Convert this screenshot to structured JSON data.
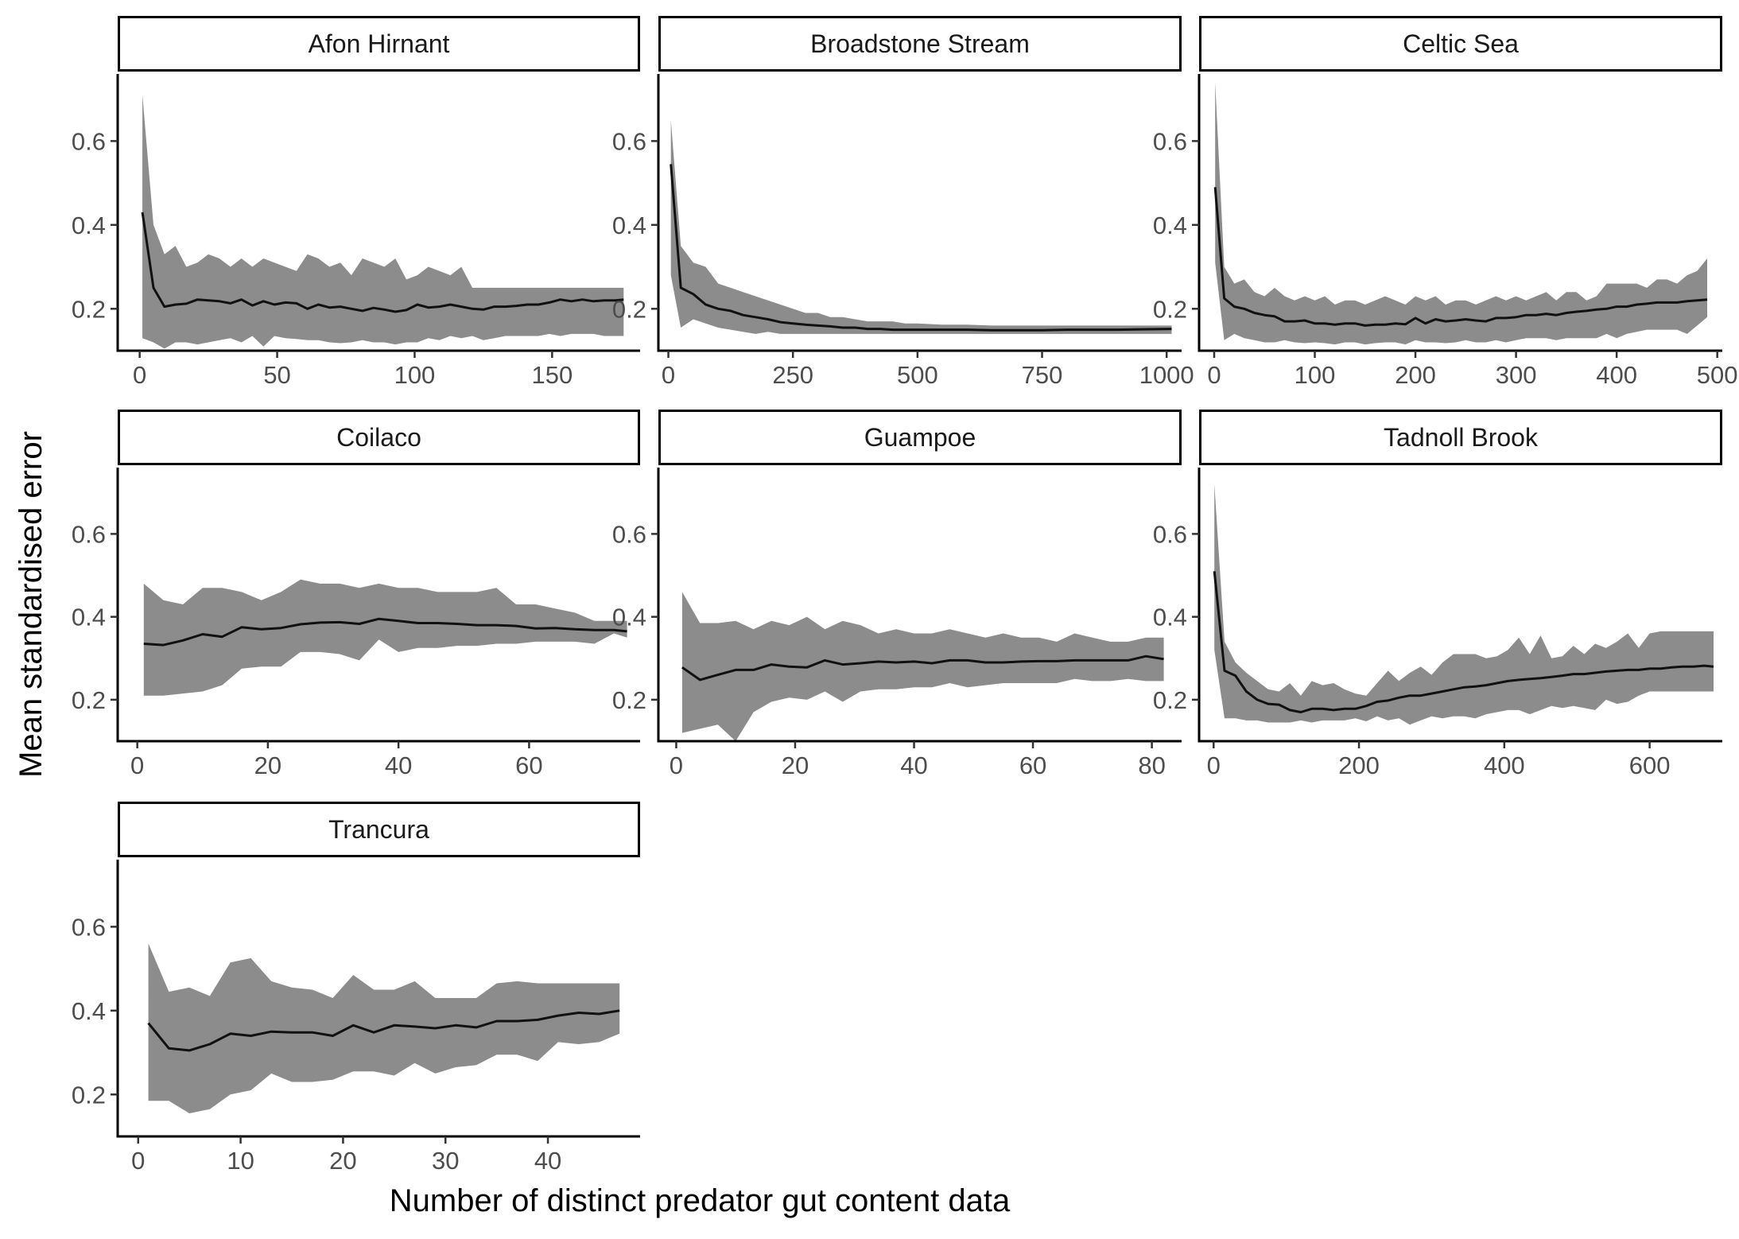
{
  "chart_data": {
    "type": "line",
    "xlabel": "Number of distinct predator gut content data",
    "ylabel": "Mean standardised error",
    "ylim": [
      0.1,
      0.76
    ],
    "yticks": [
      0.2,
      0.4,
      0.6
    ],
    "ytick_labels": [
      "0.2",
      "0.4",
      "0.6"
    ],
    "colors": {
      "line": "#111111",
      "ribbon": "#8c8c8c",
      "strip_border": "#000000",
      "axis": "#000000"
    },
    "grid": false,
    "legend": "none",
    "panels": [
      {
        "title": "Afon Hirnant",
        "xlim": [
          -8,
          182
        ],
        "xticks": [
          0,
          50,
          100,
          150
        ],
        "xtick_labels": [
          "0",
          "50",
          "100",
          "150"
        ],
        "x": [
          1,
          5,
          9,
          13,
          17,
          21,
          25,
          29,
          33,
          37,
          41,
          45,
          49,
          53,
          57,
          61,
          65,
          69,
          73,
          77,
          81,
          85,
          89,
          93,
          97,
          101,
          105,
          109,
          113,
          117,
          121,
          125,
          129,
          133,
          137,
          141,
          145,
          149,
          153,
          157,
          161,
          165,
          169,
          173,
          176
        ],
        "mean": [
          0.43,
          0.25,
          0.205,
          0.21,
          0.212,
          0.222,
          0.22,
          0.218,
          0.213,
          0.222,
          0.208,
          0.218,
          0.21,
          0.215,
          0.213,
          0.2,
          0.21,
          0.203,
          0.205,
          0.2,
          0.195,
          0.202,
          0.198,
          0.193,
          0.197,
          0.21,
          0.203,
          0.205,
          0.21,
          0.205,
          0.2,
          0.198,
          0.205,
          0.205,
          0.207,
          0.21,
          0.21,
          0.215,
          0.222,
          0.218,
          0.222,
          0.218,
          0.22,
          0.22,
          0.222
        ],
        "upper": [
          0.71,
          0.4,
          0.33,
          0.35,
          0.3,
          0.31,
          0.33,
          0.32,
          0.3,
          0.32,
          0.3,
          0.32,
          0.31,
          0.3,
          0.29,
          0.33,
          0.32,
          0.3,
          0.31,
          0.28,
          0.32,
          0.31,
          0.3,
          0.32,
          0.27,
          0.28,
          0.3,
          0.29,
          0.28,
          0.3,
          0.25,
          0.25,
          0.25,
          0.25,
          0.25,
          0.25,
          0.25,
          0.25,
          0.25,
          0.25,
          0.25,
          0.25,
          0.25,
          0.25,
          0.25
        ],
        "lower": [
          0.13,
          0.12,
          0.105,
          0.12,
          0.12,
          0.115,
          0.12,
          0.125,
          0.13,
          0.12,
          0.135,
          0.11,
          0.135,
          0.13,
          0.128,
          0.125,
          0.125,
          0.12,
          0.118,
          0.12,
          0.125,
          0.12,
          0.12,
          0.115,
          0.12,
          0.12,
          0.13,
          0.125,
          0.135,
          0.13,
          0.135,
          0.125,
          0.13,
          0.135,
          0.135,
          0.135,
          0.135,
          0.14,
          0.135,
          0.14,
          0.14,
          0.14,
          0.135,
          0.135,
          0.135
        ]
      },
      {
        "title": "Broadstone Stream",
        "xlim": [
          -20,
          1030
        ],
        "xticks": [
          0,
          250,
          500,
          750,
          1000
        ],
        "xtick_labels": [
          "0",
          "250",
          "500",
          "750",
          "1000"
        ],
        "x": [
          5,
          25,
          50,
          75,
          100,
          125,
          150,
          175,
          200,
          225,
          250,
          275,
          300,
          325,
          350,
          375,
          400,
          425,
          450,
          475,
          500,
          550,
          600,
          650,
          700,
          750,
          800,
          850,
          900,
          950,
          1010
        ],
        "mean": [
          0.545,
          0.25,
          0.235,
          0.21,
          0.2,
          0.195,
          0.185,
          0.18,
          0.175,
          0.168,
          0.165,
          0.162,
          0.16,
          0.158,
          0.155,
          0.155,
          0.152,
          0.152,
          0.15,
          0.15,
          0.15,
          0.15,
          0.15,
          0.149,
          0.149,
          0.149,
          0.15,
          0.15,
          0.15,
          0.151,
          0.152
        ],
        "upper": [
          0.65,
          0.35,
          0.31,
          0.3,
          0.26,
          0.25,
          0.24,
          0.23,
          0.22,
          0.21,
          0.2,
          0.19,
          0.19,
          0.18,
          0.18,
          0.175,
          0.17,
          0.17,
          0.17,
          0.165,
          0.165,
          0.162,
          0.162,
          0.16,
          0.16,
          0.16,
          0.16,
          0.16,
          0.16,
          0.16,
          0.16
        ],
        "lower": [
          0.28,
          0.155,
          0.175,
          0.165,
          0.155,
          0.15,
          0.145,
          0.14,
          0.145,
          0.14,
          0.14,
          0.14,
          0.14,
          0.14,
          0.14,
          0.14,
          0.14,
          0.14,
          0.14,
          0.14,
          0.14,
          0.14,
          0.14,
          0.14,
          0.14,
          0.14,
          0.14,
          0.14,
          0.14,
          0.14,
          0.14
        ]
      },
      {
        "title": "Celtic Sea",
        "xlim": [
          -15,
          505
        ],
        "xticks": [
          0,
          100,
          200,
          300,
          400,
          500
        ],
        "xtick_labels": [
          "0",
          "100",
          "200",
          "300",
          "400",
          "500"
        ],
        "x": [
          1,
          10,
          20,
          30,
          40,
          50,
          60,
          70,
          80,
          90,
          100,
          110,
          120,
          130,
          140,
          150,
          160,
          170,
          180,
          190,
          200,
          210,
          220,
          230,
          240,
          250,
          260,
          270,
          280,
          290,
          300,
          310,
          320,
          330,
          340,
          350,
          360,
          370,
          380,
          390,
          400,
          410,
          420,
          430,
          440,
          450,
          460,
          470,
          480,
          490
        ],
        "mean": [
          0.49,
          0.225,
          0.205,
          0.2,
          0.19,
          0.185,
          0.182,
          0.17,
          0.17,
          0.172,
          0.165,
          0.165,
          0.162,
          0.165,
          0.165,
          0.16,
          0.162,
          0.162,
          0.165,
          0.163,
          0.178,
          0.165,
          0.175,
          0.17,
          0.172,
          0.175,
          0.172,
          0.17,
          0.178,
          0.178,
          0.18,
          0.185,
          0.185,
          0.188,
          0.185,
          0.19,
          0.193,
          0.195,
          0.198,
          0.2,
          0.205,
          0.205,
          0.21,
          0.212,
          0.215,
          0.215,
          0.215,
          0.218,
          0.22,
          0.222
        ],
        "upper": [
          0.74,
          0.3,
          0.26,
          0.27,
          0.24,
          0.23,
          0.25,
          0.23,
          0.22,
          0.23,
          0.22,
          0.23,
          0.21,
          0.22,
          0.22,
          0.21,
          0.22,
          0.23,
          0.22,
          0.21,
          0.23,
          0.22,
          0.23,
          0.21,
          0.22,
          0.22,
          0.21,
          0.22,
          0.23,
          0.22,
          0.23,
          0.22,
          0.23,
          0.24,
          0.22,
          0.24,
          0.24,
          0.22,
          0.23,
          0.26,
          0.26,
          0.26,
          0.26,
          0.25,
          0.27,
          0.27,
          0.26,
          0.28,
          0.29,
          0.32
        ],
        "lower": [
          0.31,
          0.125,
          0.14,
          0.13,
          0.125,
          0.12,
          0.12,
          0.125,
          0.12,
          0.118,
          0.12,
          0.118,
          0.115,
          0.12,
          0.12,
          0.115,
          0.118,
          0.12,
          0.12,
          0.115,
          0.125,
          0.12,
          0.12,
          0.118,
          0.12,
          0.125,
          0.12,
          0.12,
          0.125,
          0.12,
          0.125,
          0.13,
          0.13,
          0.13,
          0.125,
          0.13,
          0.13,
          0.13,
          0.13,
          0.14,
          0.13,
          0.14,
          0.145,
          0.15,
          0.15,
          0.15,
          0.15,
          0.14,
          0.16,
          0.18
        ]
      },
      {
        "title": "Coilaco",
        "xlim": [
          -3,
          77
        ],
        "xticks": [
          0,
          20,
          40,
          60
        ],
        "xtick_labels": [
          "0",
          "20",
          "40",
          "60"
        ],
        "x": [
          1,
          4,
          7,
          10,
          13,
          16,
          19,
          22,
          25,
          28,
          31,
          34,
          37,
          40,
          43,
          46,
          49,
          52,
          55,
          58,
          61,
          64,
          67,
          70,
          73,
          75
        ],
        "mean": [
          0.335,
          0.332,
          0.343,
          0.358,
          0.352,
          0.375,
          0.37,
          0.373,
          0.382,
          0.386,
          0.387,
          0.383,
          0.395,
          0.39,
          0.385,
          0.385,
          0.383,
          0.38,
          0.38,
          0.378,
          0.372,
          0.373,
          0.37,
          0.368,
          0.368,
          0.365
        ],
        "upper": [
          0.48,
          0.44,
          0.43,
          0.47,
          0.47,
          0.46,
          0.44,
          0.46,
          0.49,
          0.48,
          0.48,
          0.47,
          0.48,
          0.47,
          0.47,
          0.46,
          0.46,
          0.46,
          0.47,
          0.43,
          0.43,
          0.42,
          0.41,
          0.39,
          0.39,
          0.39
        ],
        "lower": [
          0.21,
          0.21,
          0.215,
          0.22,
          0.235,
          0.275,
          0.28,
          0.28,
          0.315,
          0.315,
          0.31,
          0.295,
          0.345,
          0.315,
          0.325,
          0.325,
          0.33,
          0.33,
          0.335,
          0.335,
          0.34,
          0.34,
          0.34,
          0.335,
          0.36,
          0.35
        ]
      },
      {
        "title": "Guampoe",
        "xlim": [
          -3,
          85
        ],
        "xticks": [
          0,
          20,
          40,
          60,
          80
        ],
        "xtick_labels": [
          "0",
          "20",
          "40",
          "60",
          "80"
        ],
        "x": [
          1,
          4,
          7,
          10,
          13,
          16,
          19,
          22,
          25,
          28,
          31,
          34,
          37,
          40,
          43,
          46,
          49,
          52,
          55,
          58,
          61,
          64,
          67,
          70,
          73,
          76,
          79,
          82
        ],
        "mean": [
          0.278,
          0.248,
          0.26,
          0.272,
          0.272,
          0.285,
          0.28,
          0.278,
          0.295,
          0.285,
          0.288,
          0.292,
          0.29,
          0.292,
          0.288,
          0.295,
          0.295,
          0.29,
          0.29,
          0.292,
          0.293,
          0.293,
          0.295,
          0.295,
          0.295,
          0.295,
          0.305,
          0.298
        ],
        "upper": [
          0.46,
          0.385,
          0.385,
          0.39,
          0.37,
          0.39,
          0.38,
          0.4,
          0.37,
          0.39,
          0.38,
          0.36,
          0.37,
          0.36,
          0.36,
          0.37,
          0.36,
          0.35,
          0.36,
          0.35,
          0.35,
          0.34,
          0.36,
          0.35,
          0.34,
          0.34,
          0.35,
          0.35
        ],
        "lower": [
          0.12,
          0.13,
          0.14,
          0.1,
          0.17,
          0.195,
          0.205,
          0.2,
          0.22,
          0.195,
          0.22,
          0.225,
          0.225,
          0.23,
          0.23,
          0.24,
          0.23,
          0.235,
          0.24,
          0.24,
          0.24,
          0.24,
          0.25,
          0.245,
          0.245,
          0.25,
          0.245,
          0.245
        ]
      },
      {
        "title": "Tadnoll Brook",
        "xlim": [
          -20,
          700
        ],
        "xticks": [
          0,
          200,
          400,
          600
        ],
        "xtick_labels": [
          "0",
          "200",
          "400",
          "600"
        ],
        "x": [
          1,
          15,
          30,
          45,
          60,
          75,
          90,
          105,
          120,
          135,
          150,
          165,
          180,
          195,
          210,
          225,
          240,
          255,
          270,
          285,
          300,
          315,
          330,
          345,
          360,
          375,
          390,
          405,
          420,
          435,
          450,
          465,
          480,
          495,
          510,
          525,
          540,
          555,
          570,
          585,
          600,
          615,
          630,
          645,
          660,
          675,
          688
        ],
        "mean": [
          0.51,
          0.27,
          0.258,
          0.22,
          0.2,
          0.19,
          0.188,
          0.175,
          0.17,
          0.178,
          0.178,
          0.175,
          0.178,
          0.178,
          0.185,
          0.195,
          0.198,
          0.205,
          0.21,
          0.21,
          0.215,
          0.22,
          0.225,
          0.23,
          0.232,
          0.235,
          0.24,
          0.245,
          0.248,
          0.25,
          0.252,
          0.255,
          0.258,
          0.262,
          0.262,
          0.265,
          0.268,
          0.27,
          0.272,
          0.272,
          0.275,
          0.275,
          0.278,
          0.28,
          0.28,
          0.282,
          0.28
        ],
        "upper": [
          0.72,
          0.34,
          0.29,
          0.265,
          0.245,
          0.225,
          0.22,
          0.24,
          0.21,
          0.245,
          0.235,
          0.24,
          0.225,
          0.215,
          0.21,
          0.24,
          0.27,
          0.245,
          0.265,
          0.28,
          0.26,
          0.29,
          0.31,
          0.31,
          0.31,
          0.3,
          0.305,
          0.32,
          0.35,
          0.31,
          0.355,
          0.3,
          0.305,
          0.33,
          0.31,
          0.335,
          0.325,
          0.34,
          0.36,
          0.325,
          0.36,
          0.365,
          0.365,
          0.365,
          0.365,
          0.365,
          0.365
        ],
        "lower": [
          0.32,
          0.155,
          0.155,
          0.15,
          0.15,
          0.145,
          0.145,
          0.145,
          0.15,
          0.145,
          0.15,
          0.15,
          0.15,
          0.155,
          0.148,
          0.16,
          0.15,
          0.155,
          0.14,
          0.15,
          0.16,
          0.155,
          0.16,
          0.16,
          0.155,
          0.165,
          0.17,
          0.175,
          0.175,
          0.165,
          0.175,
          0.185,
          0.18,
          0.185,
          0.18,
          0.175,
          0.2,
          0.19,
          0.195,
          0.21,
          0.22,
          0.22,
          0.22,
          0.22,
          0.22,
          0.22,
          0.22
        ]
      },
      {
        "title": "Trancura",
        "xlim": [
          -2,
          49
        ],
        "xticks": [
          0,
          10,
          20,
          30,
          40
        ],
        "xtick_labels": [
          "0",
          "10",
          "20",
          "30",
          "40"
        ],
        "x": [
          1,
          3,
          5,
          7,
          9,
          11,
          13,
          15,
          17,
          19,
          21,
          23,
          25,
          27,
          29,
          31,
          33,
          35,
          37,
          39,
          41,
          43,
          45,
          47
        ],
        "mean": [
          0.37,
          0.31,
          0.305,
          0.32,
          0.345,
          0.34,
          0.35,
          0.348,
          0.348,
          0.34,
          0.365,
          0.348,
          0.365,
          0.362,
          0.358,
          0.365,
          0.36,
          0.375,
          0.375,
          0.378,
          0.388,
          0.395,
          0.392,
          0.4
        ],
        "upper": [
          0.56,
          0.445,
          0.455,
          0.435,
          0.515,
          0.525,
          0.47,
          0.455,
          0.45,
          0.43,
          0.485,
          0.45,
          0.45,
          0.47,
          0.43,
          0.43,
          0.43,
          0.465,
          0.47,
          0.465,
          0.465,
          0.465,
          0.465,
          0.465
        ],
        "lower": [
          0.185,
          0.185,
          0.155,
          0.165,
          0.2,
          0.21,
          0.25,
          0.23,
          0.23,
          0.235,
          0.255,
          0.255,
          0.245,
          0.275,
          0.25,
          0.265,
          0.27,
          0.295,
          0.295,
          0.28,
          0.325,
          0.32,
          0.325,
          0.345
        ]
      }
    ]
  }
}
